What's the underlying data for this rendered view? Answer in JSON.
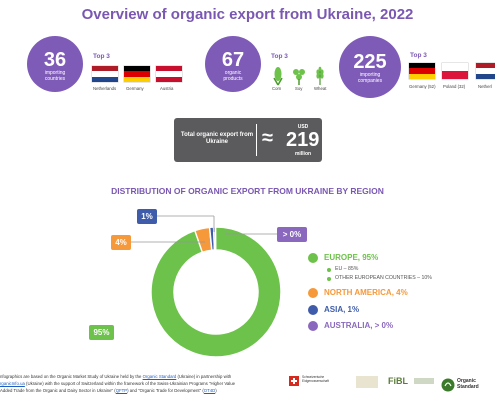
{
  "header": {
    "title": "Overview of organic export from Ukraine, 2022"
  },
  "stats": [
    {
      "value": "36",
      "label": "importing countries",
      "top3_label": "Top 3",
      "items": [
        {
          "name": "Netherlands",
          "flag": "netherlands"
        },
        {
          "name": "Germany",
          "flag": "germany"
        },
        {
          "name": "Austria",
          "flag": "austria"
        }
      ]
    },
    {
      "value": "67",
      "label": "organic products",
      "top3_label": "Top 3",
      "items": [
        {
          "name": "Corn",
          "icon": "corn-icon"
        },
        {
          "name": "Soy",
          "icon": "soy-icon"
        },
        {
          "name": "Wheat",
          "icon": "wheat-icon"
        }
      ]
    },
    {
      "value": "225",
      "label": "importing companies",
      "top3_label": "Top 3",
      "items": [
        {
          "name": "Germany (52)",
          "flag": "germany"
        },
        {
          "name": "Poland (32)",
          "flag": "poland"
        },
        {
          "name": "Netherl",
          "flag": "netherlands"
        }
      ]
    }
  ],
  "total": {
    "label": "Total organic export from Ukraine",
    "approx": "≈",
    "currency": "USD",
    "value": "219",
    "unit": "million"
  },
  "distribution": {
    "title": "DISTRIBUTION OF ORGANIC EXPORT FROM UKRAINE BY REGION",
    "callouts": {
      "europe": "95%",
      "north_america": "4%",
      "asia": "1%",
      "australia": "> 0%"
    },
    "legend": [
      {
        "label": "EUROPE, 95%",
        "color": "#6cc24a"
      },
      {
        "label": "NORTH AMERICA, 4%",
        "color": "#f6993a"
      },
      {
        "label": "ASIA, 1%",
        "color": "#3e5ca9"
      },
      {
        "label": "AUSTRALIA, > 0%",
        "color": "#8a68bd"
      }
    ],
    "europe_sub": [
      "EU – 85%",
      "OTHER EUROPEAN COUNTRIES – 10%"
    ]
  },
  "chart_data": {
    "type": "pie",
    "title": "DISTRIBUTION OF ORGANIC EXPORT FROM UKRAINE BY REGION",
    "categories": [
      "EUROPE",
      "NORTH AMERICA",
      "ASIA",
      "AUSTRALIA"
    ],
    "values": [
      95,
      4,
      1,
      0.2
    ],
    "colors": [
      "#6cc24a",
      "#f6993a",
      "#3e5ca9",
      "#8a68bd"
    ],
    "donut": true
  },
  "footer": {
    "line1_a": "nfographics are based on the Organic Market Study of Ukraine held by the ",
    "line1_link": "Organic Standard",
    "line1_b": " (Ukraine) in partnership with",
    "line2_link": "rganicInfo.ua",
    "line2_b": " (Ukraine) with the support of Switzerland within the framework of the Swiss-Ukrainian Programs \"Higher Value",
    "line3_a": "Added Trade from the Organic and Dairy Sector in Ukraine\" (",
    "line3_link": "QFTP",
    "line3_b": ") and \"Organic Trade for Development\" (",
    "line3_link2": "OT4D",
    "line3_c": ")",
    "logos": {
      "swiss": "Schweizerische Eidgenossenschaft",
      "fibl": "FiBL",
      "organic_standard": "Organic Standard"
    }
  }
}
